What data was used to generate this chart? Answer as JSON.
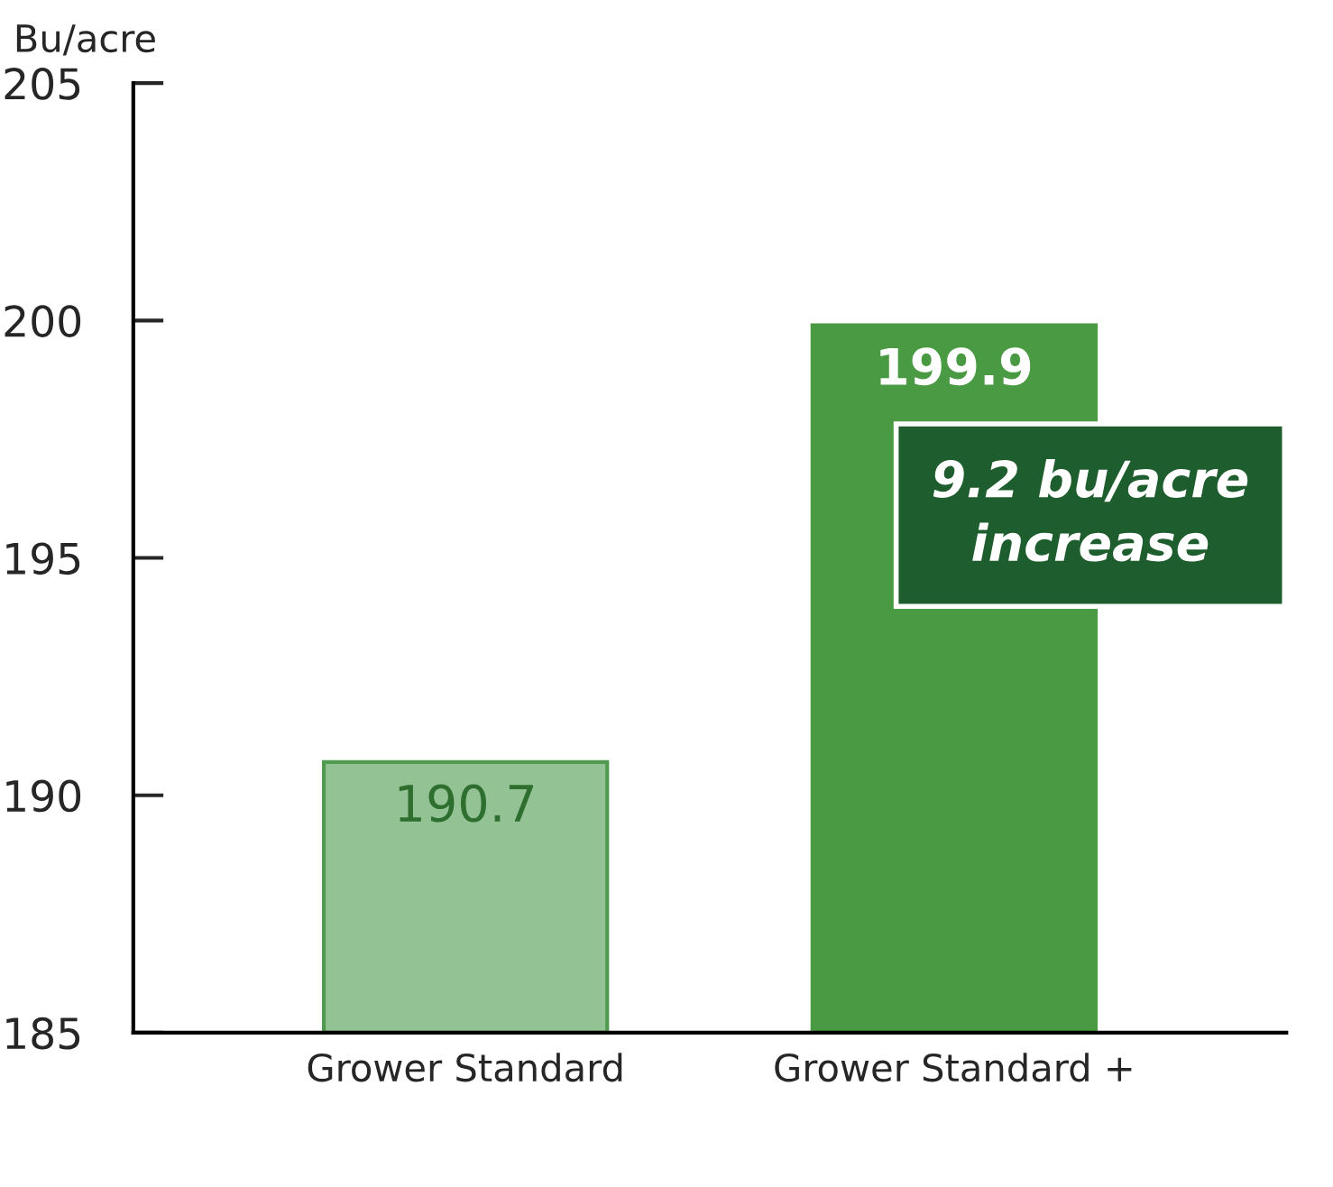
{
  "chart_data": {
    "type": "bar",
    "ylabel": "Bu/acre",
    "categories": [
      "Grower Standard",
      "Grower Standard +"
    ],
    "values": [
      190.7,
      199.9
    ],
    "colors": [
      "#93c394",
      "#4a9a43"
    ],
    "ylim": [
      185,
      205
    ],
    "yticks": [
      185,
      190,
      195,
      200,
      205
    ],
    "data_labels": true,
    "grid": false,
    "legend": false,
    "annotations": [
      "9.2 bu/acre\nincrease"
    ]
  }
}
